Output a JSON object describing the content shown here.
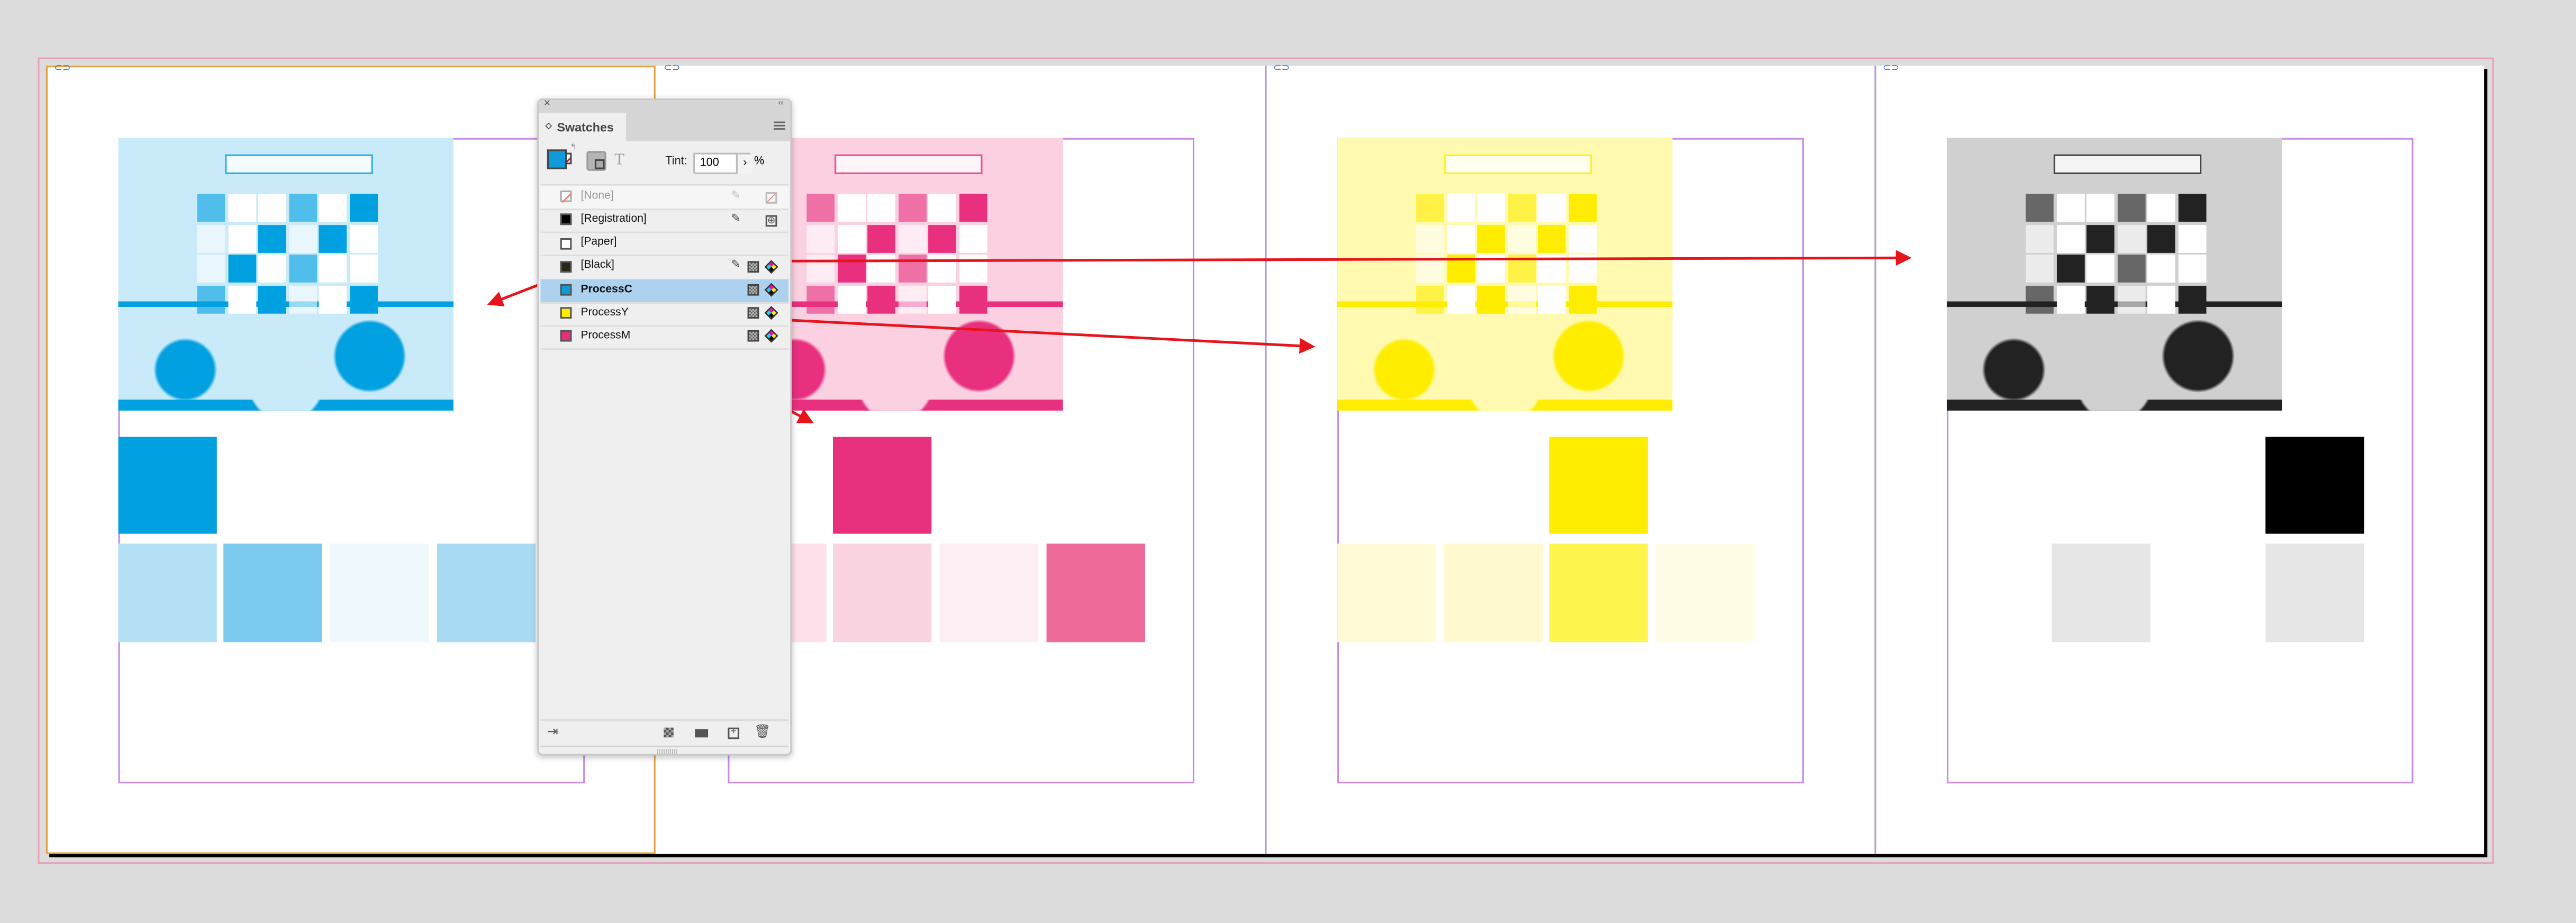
{
  "panel": {
    "tab_label": "Swatches",
    "tint_label": "Tint:",
    "tint_value": "100",
    "tint_unit": "%",
    "close_icon": "close-icon",
    "collapse_icon": "double-chevron-left-icon",
    "menu_icon": "hamburger-menu-icon",
    "fill_color": "#0f9bdb",
    "swatches": [
      {
        "name": "[None]",
        "color": "none",
        "selected": false,
        "bold": false
      },
      {
        "name": "[Registration]",
        "color": "#000000",
        "selected": false,
        "bold": false
      },
      {
        "name": "[Paper]",
        "color": "#ffffff",
        "selected": false,
        "bold": false
      },
      {
        "name": "[Black]",
        "color": "#2b2617",
        "selected": false,
        "bold": false
      },
      {
        "name": "ProcessC",
        "color": "#0d9bd8",
        "selected": true,
        "bold": true
      },
      {
        "name": "ProcessY",
        "color": "#ffed00",
        "selected": false,
        "bold": false
      },
      {
        "name": "ProcessM",
        "color": "#e4307a",
        "selected": false,
        "bold": false
      }
    ],
    "footer_icons": [
      "place-swatch-icon",
      "swatch-views-icon",
      "new-color-group-icon",
      "new-swatch-icon",
      "delete-icon"
    ]
  },
  "colors": {
    "cyan": "#00a0e1",
    "magenta": "#e8307f",
    "yellow": "#ffed00",
    "black": "#000000",
    "arrow": "#e8141b",
    "selection": "#acd2f0"
  },
  "pages": [
    {
      "ink": "cyan",
      "big": "#00a0e1",
      "tints": [
        "#b3e0f5",
        "#7ccbee",
        "#eef8fd",
        "#a8dbf3"
      ]
    },
    {
      "ink": "magenta",
      "big": "#e8307f",
      "tints": [
        "#fde0ea",
        "#f9d3e0",
        "#fdeef3",
        "#ee6a9b"
      ]
    },
    {
      "ink": "yellow",
      "big": "#ffed00",
      "tints": [
        "#fffbd6",
        "#fff9cf",
        "#fff54f",
        "#fffde6"
      ]
    },
    {
      "ink": "black",
      "big": "#000000",
      "tints": [
        "#e6e6e6",
        null,
        "#e6e6e6"
      ]
    }
  ]
}
